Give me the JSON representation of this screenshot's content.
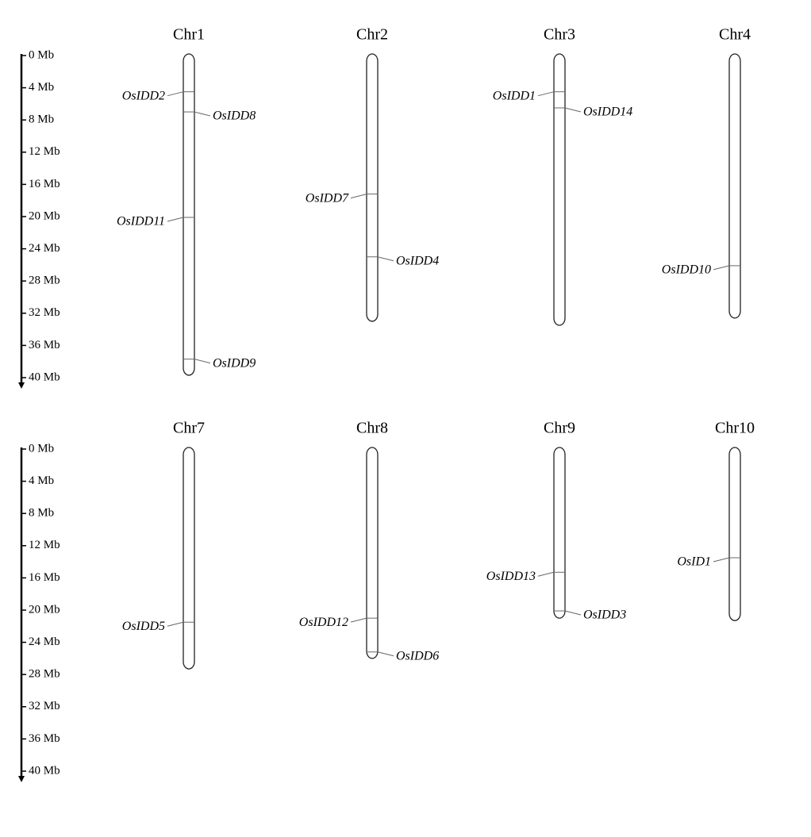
{
  "panels": [
    {
      "ticks": [
        {
          "value": 0,
          "label": "0 Mb"
        },
        {
          "value": 4,
          "label": "4 Mb"
        },
        {
          "value": 8,
          "label": "8 Mb"
        },
        {
          "value": 12,
          "label": "12 Mb"
        },
        {
          "value": 16,
          "label": "16 Mb"
        },
        {
          "value": 20,
          "label": "20 Mb"
        },
        {
          "value": 24,
          "label": "24 Mb"
        },
        {
          "value": 28,
          "label": "28 Mb"
        },
        {
          "value": 32,
          "label": "32 Mb"
        },
        {
          "value": 36,
          "label": "36 Mb"
        },
        {
          "value": 40,
          "label": "40 Mb"
        }
      ],
      "chromosomes": [
        {
          "name": "Chr1",
          "length": 39.7,
          "genes": [
            {
              "name": "OsIDD2",
              "position": 4.5
            },
            {
              "name": "OsIDD8",
              "position": 7.0
            },
            {
              "name": "OsIDD11",
              "position": 20.1
            },
            {
              "name": "OsIDD9",
              "position": 37.7
            }
          ]
        },
        {
          "name": "Chr2",
          "length": 33.0,
          "genes": [
            {
              "name": "OsIDD7",
              "position": 17.2
            },
            {
              "name": "OsIDD4",
              "position": 25.0
            }
          ]
        },
        {
          "name": "Chr3",
          "length": 33.5,
          "genes": [
            {
              "name": "OsIDD1",
              "position": 4.5
            },
            {
              "name": "OsIDD14",
              "position": 6.5
            }
          ]
        },
        {
          "name": "Chr4",
          "length": 32.6,
          "genes": [
            {
              "name": "OsIDD10",
              "position": 26.1
            }
          ]
        }
      ]
    },
    {
      "ticks": [
        {
          "value": 0,
          "label": "0 Mb"
        },
        {
          "value": 4,
          "label": "4 Mb"
        },
        {
          "value": 8,
          "label": "8 Mb"
        },
        {
          "value": 12,
          "label": "12 Mb"
        },
        {
          "value": 16,
          "label": "16 Mb"
        },
        {
          "value": 20,
          "label": "20 Mb"
        },
        {
          "value": 24,
          "label": "24 Mb"
        },
        {
          "value": 28,
          "label": "28 Mb"
        },
        {
          "value": 32,
          "label": "32 Mb"
        },
        {
          "value": 36,
          "label": "36 Mb"
        },
        {
          "value": 40,
          "label": "40 Mb"
        }
      ],
      "chromosomes": [
        {
          "name": "Chr7",
          "length": 27.3,
          "genes": [
            {
              "name": "OsIDD5",
              "position": 21.5
            }
          ]
        },
        {
          "name": "Chr8",
          "length": 26.0,
          "genes": [
            {
              "name": "OsIDD12",
              "position": 21.0
            },
            {
              "name": "OsIDD6",
              "position": 25.2
            }
          ]
        },
        {
          "name": "Chr9",
          "length": 21.0,
          "genes": [
            {
              "name": "OsIDD13",
              "position": 15.3
            },
            {
              "name": "OsIDD3",
              "position": 20.1
            }
          ]
        },
        {
          "name": "Chr10",
          "length": 21.3,
          "genes": [
            {
              "name": "OsID1",
              "position": 13.5
            }
          ]
        }
      ]
    }
  ]
}
